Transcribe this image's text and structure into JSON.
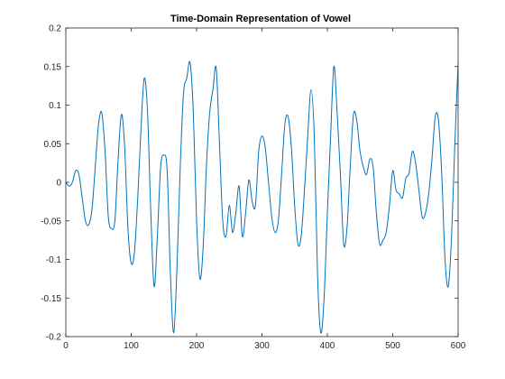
{
  "chart_data": {
    "type": "line",
    "title": "Time-Domain Representation of Vowel",
    "xlabel": "",
    "ylabel": "",
    "xlim": [
      0,
      600
    ],
    "ylim": [
      -0.2,
      0.2
    ],
    "xticks": [
      0,
      100,
      200,
      300,
      400,
      500,
      600
    ],
    "xtick_labels": [
      "0",
      "100",
      "200",
      "300",
      "400",
      "500",
      "600"
    ],
    "yticks": [
      -0.2,
      -0.15,
      -0.1,
      -0.05,
      0,
      0.05,
      0.1,
      0.15,
      0.2
    ],
    "ytick_labels": [
      "-0.2",
      "-0.15",
      "-0.1",
      "-0.05",
      "0",
      "0.05",
      "0.1",
      "0.15",
      "0.2"
    ],
    "grid": false,
    "line_color": "#0072BD",
    "series": [
      {
        "x": [
          0,
          5,
          10,
          15,
          20,
          25,
          30,
          35,
          40,
          45,
          50,
          55,
          60,
          65,
          70,
          75,
          80,
          85,
          90,
          95,
          100,
          105,
          110,
          115,
          120,
          125,
          130,
          135,
          140,
          145,
          150,
          155,
          160,
          165,
          170,
          175,
          180,
          185,
          190,
          195,
          200,
          205,
          210,
          215,
          220,
          225,
          230,
          235,
          240,
          245,
          250,
          255,
          260,
          265,
          270,
          275,
          280,
          285,
          290,
          295,
          300,
          305,
          310,
          315,
          320,
          325,
          330,
          335,
          340,
          345,
          350,
          355,
          360,
          365,
          370,
          375,
          380,
          385,
          390,
          395,
          400,
          405,
          410,
          415,
          420,
          425,
          430,
          435,
          440,
          445,
          450,
          455,
          460,
          465,
          470,
          475,
          480,
          485,
          490,
          495,
          500,
          505,
          510,
          515,
          520,
          525,
          530,
          535,
          540,
          545,
          550,
          555,
          560,
          565,
          570,
          575,
          580,
          585,
          590,
          595,
          600
        ],
        "y": [
          0.0,
          -0.005,
          0.0,
          0.015,
          0.01,
          -0.02,
          -0.05,
          -0.055,
          -0.035,
          0.02,
          0.075,
          0.09,
          0.04,
          -0.045,
          -0.06,
          -0.05,
          0.03,
          0.088,
          0.045,
          -0.06,
          -0.105,
          -0.09,
          -0.02,
          0.07,
          0.135,
          0.09,
          -0.04,
          -0.135,
          -0.07,
          0.02,
          0.035,
          0.015,
          -0.12,
          -0.195,
          -0.11,
          0.02,
          0.115,
          0.135,
          0.155,
          0.09,
          -0.05,
          -0.125,
          -0.085,
          0.02,
          0.09,
          0.12,
          0.148,
          0.05,
          -0.05,
          -0.07,
          -0.03,
          -0.065,
          -0.04,
          -0.005,
          -0.07,
          -0.04,
          0.003,
          -0.025,
          -0.03,
          0.04,
          0.06,
          0.045,
          0.0,
          -0.045,
          -0.065,
          -0.05,
          0.01,
          0.075,
          0.085,
          0.045,
          -0.03,
          -0.08,
          -0.07,
          -0.01,
          0.06,
          0.12,
          0.06,
          -0.12,
          -0.195,
          -0.15,
          -0.04,
          0.06,
          0.15,
          0.09,
          0.01,
          -0.08,
          -0.06,
          0.02,
          0.088,
          0.08,
          0.04,
          0.02,
          0.01,
          0.03,
          0.02,
          -0.04,
          -0.08,
          -0.075,
          -0.065,
          -0.03,
          0.015,
          -0.01,
          -0.015,
          -0.02,
          0.005,
          0.012,
          0.04,
          0.025,
          -0.01,
          -0.045,
          -0.04,
          -0.015,
          0.03,
          0.085,
          0.08,
          0.01,
          -0.1,
          -0.135,
          -0.07,
          0.05,
          0.155
        ]
      }
    ]
  }
}
